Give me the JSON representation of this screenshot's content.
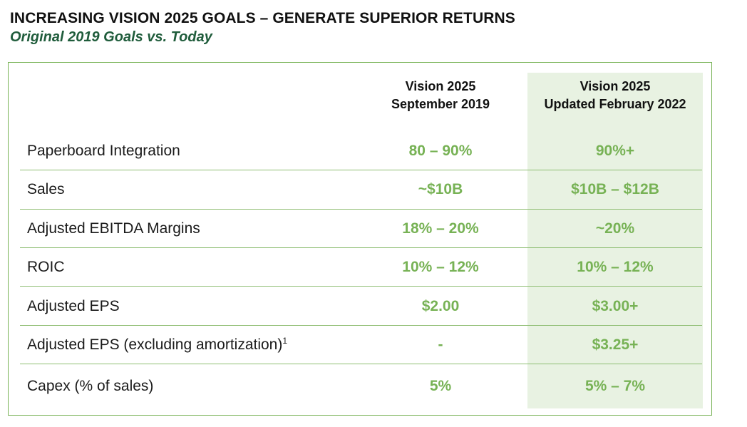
{
  "header": {
    "title": "INCREASING VISION 2025 GOALS – GENERATE SUPERIOR RETURNS",
    "subtitle": "Original 2019 Goals vs. Today"
  },
  "table": {
    "columns": [
      {
        "line1": "Vision 2025",
        "line2": "September 2019"
      },
      {
        "line1": "Vision 2025",
        "line2": "Updated February 2022"
      }
    ],
    "rows": [
      {
        "label": "Paperboard Integration",
        "sup": "",
        "sept_2019": "80 – 90%",
        "feb_2022": "90%+"
      },
      {
        "label": "Sales",
        "sup": "",
        "sept_2019": "~$10B",
        "feb_2022": "$10B – $12B"
      },
      {
        "label": "Adjusted EBITDA Margins",
        "sup": "",
        "sept_2019": "18% – 20%",
        "feb_2022": "~20%"
      },
      {
        "label": "ROIC",
        "sup": "",
        "sept_2019": "10% – 12%",
        "feb_2022": "10% – 12%"
      },
      {
        "label": "Adjusted EPS",
        "sup": "",
        "sept_2019": "$2.00",
        "feb_2022": "$3.00+"
      },
      {
        "label": "Adjusted EPS (excluding amortization)",
        "sup": "1",
        "sept_2019": "-",
        "feb_2022": "$3.25+"
      },
      {
        "label": "Capex (% of sales)",
        "sup": "",
        "sept_2019": "5%",
        "feb_2022": "5% – 7%"
      }
    ]
  },
  "colors": {
    "accent_green": "#77b255",
    "subtitle_green": "#1f5c3b",
    "highlight_fill": "#e8f2e2"
  }
}
